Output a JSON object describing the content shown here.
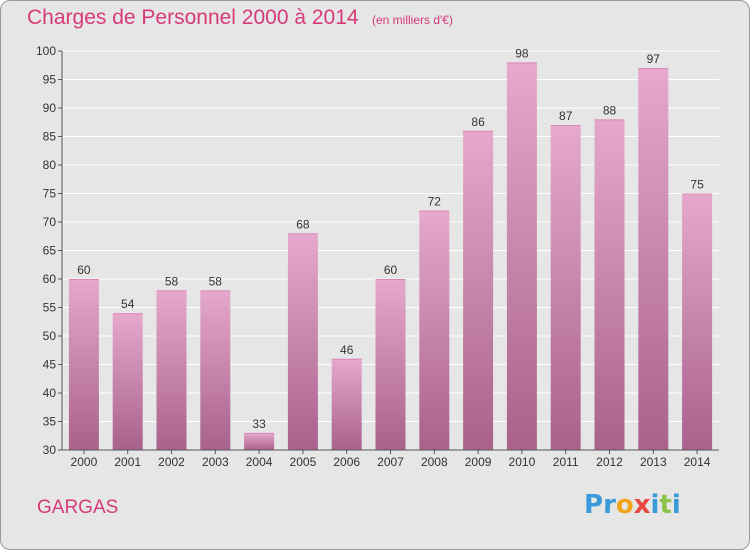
{
  "title": "Charges de Personnel 2000 à 2014",
  "subtitle": "(en milliers d'€)",
  "town": "GARGAS",
  "logo": {
    "text": "Proxiti",
    "letters": [
      {
        "ch": "P",
        "color": "#3a9ad9"
      },
      {
        "ch": "r",
        "color": "#3a9ad9"
      },
      {
        "ch": "o",
        "color": "#f2a51a"
      },
      {
        "ch": "x",
        "color": "#e8473f"
      },
      {
        "ch": "i",
        "color": "#3a9ad9"
      },
      {
        "ch": "t",
        "color": "#8bc34a"
      },
      {
        "ch": "i",
        "color": "#3a9ad9"
      }
    ]
  },
  "colors": {
    "title": "#d63a78",
    "bar_top": "#e6a8cc",
    "bar_bottom": "#a8628c",
    "grid": "#ffffff",
    "background": "#e6e6e6"
  },
  "chart_data": {
    "type": "bar",
    "categories": [
      "2000",
      "2001",
      "2002",
      "2003",
      "2004",
      "2005",
      "2006",
      "2007",
      "2008",
      "2009",
      "2010",
      "2011",
      "2012",
      "2013",
      "2014"
    ],
    "values": [
      60,
      54,
      58,
      58,
      33,
      68,
      46,
      60,
      72,
      86,
      98,
      87,
      88,
      97,
      75
    ],
    "ylim": [
      30,
      100
    ],
    "yticks": [
      30,
      35,
      40,
      45,
      50,
      55,
      60,
      65,
      70,
      75,
      80,
      85,
      90,
      95,
      100
    ],
    "grid": true,
    "legend": "none"
  }
}
